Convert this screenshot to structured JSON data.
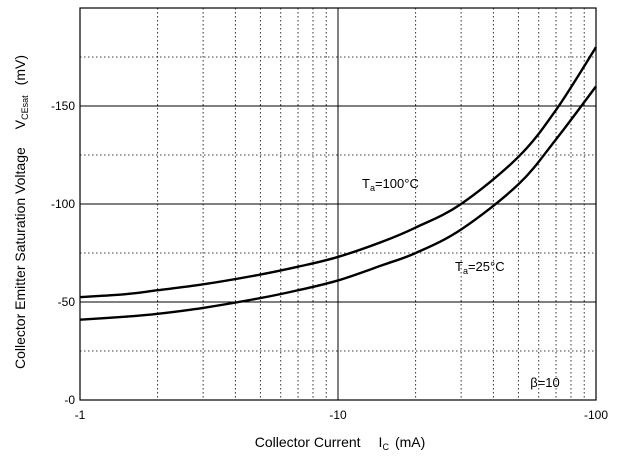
{
  "chart_data": {
    "type": "line",
    "xscale": "log",
    "xlabel_main": "Collector Current",
    "xlabel_symbol": "I",
    "xlabel_sub": "C",
    "xlabel_unit": "(mA)",
    "ylabel_main": "Collector Emitter Saturation Voltage",
    "ylabel_symbol": "V",
    "ylabel_sub": "CEsat",
    "ylabel_unit": "(mV)",
    "xlim": [
      -1,
      -100
    ],
    "ylim": [
      0,
      -200
    ],
    "x_ticks": [
      {
        "value": -1,
        "label": "-1"
      },
      {
        "value": -10,
        "label": "-10"
      },
      {
        "value": -100,
        "label": "-100"
      }
    ],
    "y_ticks": [
      {
        "value": 0,
        "label": "-0"
      },
      {
        "value": -50,
        "label": "-50"
      },
      {
        "value": -100,
        "label": "-100"
      },
      {
        "value": -150,
        "label": "-150"
      }
    ],
    "grid": "major solid, minor dotted",
    "legend": "none (curves labeled inline)",
    "annotation": "β=10",
    "series": [
      {
        "name_main": "T",
        "name_sub": "a",
        "name_rest": "=100°C",
        "x": [
          -1,
          -1.5,
          -2,
          -3,
          -5,
          -7,
          -10,
          -15,
          -20,
          -30,
          -50,
          -70,
          -100
        ],
        "y": [
          -52.5,
          -54,
          -56,
          -59,
          -64,
          -68,
          -73,
          -81,
          -88,
          -100,
          -124,
          -148,
          -180
        ]
      },
      {
        "name_main": "T",
        "name_sub": "a",
        "name_rest": "=25°C",
        "x": [
          -1,
          -1.5,
          -2,
          -3,
          -5,
          -7,
          -10,
          -15,
          -20,
          -30,
          -50,
          -70,
          -100
        ],
        "y": [
          -41,
          -42.5,
          -44,
          -47,
          -52,
          -56,
          -61,
          -69,
          -75,
          -87,
          -110,
          -133,
          -160
        ]
      }
    ]
  }
}
